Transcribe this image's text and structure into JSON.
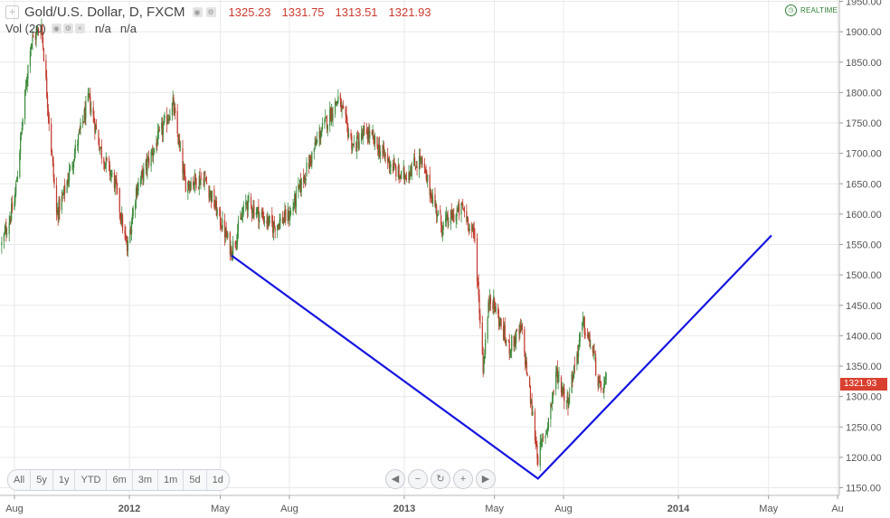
{
  "header": {
    "symbol": "Gold/U.S. Dollar, D, FXCM",
    "open": "1325.23",
    "high": "1331.75",
    "low": "1313.51",
    "close": "1321.93",
    "plus_icon": "plus-icon",
    "settings_icons": [
      "eye-icon",
      "gear-icon"
    ]
  },
  "volume": {
    "label": "Vol (20)",
    "value1": "n/a",
    "value2": "n/a"
  },
  "realtime": "REALTIME",
  "ranges": [
    "All",
    "5y",
    "1y",
    "YTD",
    "6m",
    "3m",
    "1m",
    "5d",
    "1d"
  ],
  "nav_buttons": [
    "scroll-left-icon",
    "zoom-out-icon",
    "reset-icon",
    "zoom-in-icon",
    "scroll-right-icon"
  ],
  "colors": {
    "up": "#3a8a3a",
    "down": "#c0392b",
    "trendline": "#1515e0",
    "price_tag": "#d9402f",
    "grid": "#e9e9e9"
  },
  "chart_data": {
    "type": "candlestick",
    "ylim": [
      1140,
      1960
    ],
    "yticks": [
      "1150.00",
      "1200.00",
      "1250.00",
      "1300.00",
      "1350.00",
      "1400.00",
      "1450.00",
      "1500.00",
      "1550.00",
      "1600.00",
      "1650.00",
      "1700.00",
      "1750.00",
      "1800.00",
      "1850.00",
      "1900.00",
      "1950.00"
    ],
    "xticks": [
      "Aug",
      "2012",
      "May",
      "Aug",
      "2013",
      "May",
      "Aug",
      "2014",
      "May",
      "Au"
    ],
    "last_price": "1321.93",
    "price_path": [
      [
        "2011-07-15",
        1550
      ],
      [
        "2011-08-01",
        1620
      ],
      [
        "2011-08-22",
        1880
      ],
      [
        "2011-09-06",
        1910
      ],
      [
        "2011-09-26",
        1600
      ],
      [
        "2011-10-05",
        1630
      ],
      [
        "2011-11-08",
        1790
      ],
      [
        "2011-11-25",
        1700
      ],
      [
        "2011-12-13",
        1650
      ],
      [
        "2011-12-29",
        1540
      ],
      [
        "2012-01-10",
        1640
      ],
      [
        "2012-02-28",
        1780
      ],
      [
        "2012-03-15",
        1650
      ],
      [
        "2012-04-10",
        1660
      ],
      [
        "2012-05-16",
        1540
      ],
      [
        "2012-06-05",
        1620
      ],
      [
        "2012-07-10",
        1580
      ],
      [
        "2012-08-02",
        1600
      ],
      [
        "2012-09-10",
        1730
      ],
      [
        "2012-10-05",
        1790
      ],
      [
        "2012-10-25",
        1710
      ],
      [
        "2012-11-12",
        1735
      ],
      [
        "2012-12-03",
        1700
      ],
      [
        "2012-12-28",
        1660
      ],
      [
        "2013-01-22",
        1690
      ],
      [
        "2013-02-20",
        1580
      ],
      [
        "2013-03-20",
        1610
      ],
      [
        "2013-04-05",
        1560
      ],
      [
        "2013-04-16",
        1350
      ],
      [
        "2013-04-25",
        1470
      ],
      [
        "2013-05-20",
        1380
      ],
      [
        "2013-06-06",
        1410
      ],
      [
        "2013-06-28",
        1200
      ],
      [
        "2013-07-10",
        1250
      ],
      [
        "2013-07-23",
        1340
      ],
      [
        "2013-08-06",
        1290
      ],
      [
        "2013-08-27",
        1420
      ],
      [
        "2013-09-10",
        1370
      ],
      [
        "2013-09-18",
        1310
      ],
      [
        "2013-09-27",
        1322
      ]
    ],
    "trendline": [
      [
        "2012-05-16",
        1532
      ],
      [
        "2013-06-28",
        1165
      ],
      [
        "2014-05-05",
        1565
      ]
    ]
  }
}
